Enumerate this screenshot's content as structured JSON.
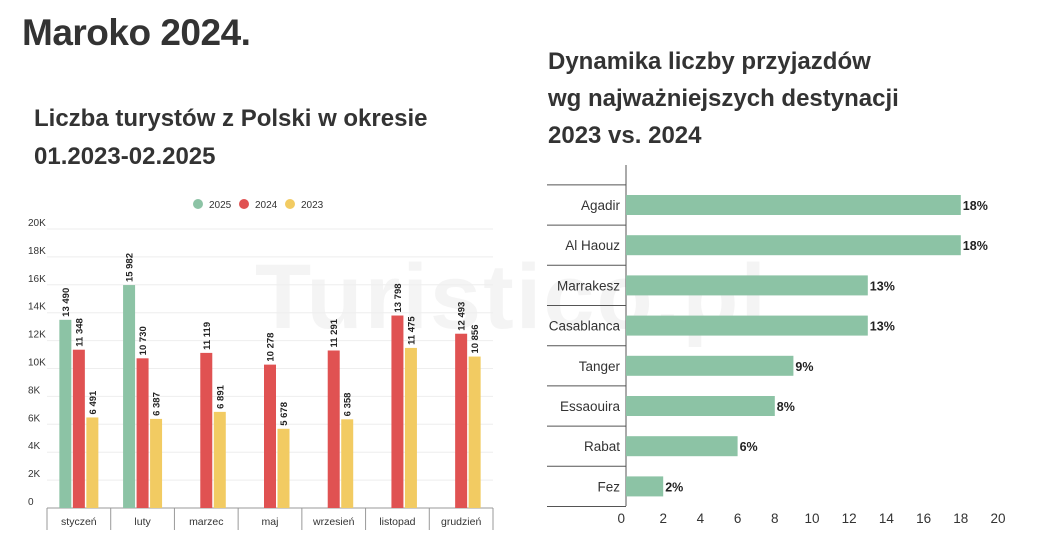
{
  "page": {
    "title": "Maroko 2024.",
    "watermark": "Turistico.pl"
  },
  "left_chart": {
    "title_lines": [
      "Liczba turystów z Polski w okresie",
      "01.2023-02.2025"
    ]
  },
  "right_chart": {
    "title_lines": [
      "Dynamika liczby przyjazdów",
      "wg najważniejszych destynacji",
      "2023 vs. 2024"
    ]
  },
  "colors": {
    "2025": "#8cc3a5",
    "2024": "#e05252",
    "2023": "#f2cb62",
    "hbar": "#8cc3a5"
  },
  "chart_data": [
    {
      "type": "bar",
      "title": "Liczba turystów z Polski w okresie 01.2023-02.2025",
      "categories": [
        "styczeń",
        "luty",
        "marzec",
        "maj",
        "wrzesień",
        "listopad",
        "grudzień"
      ],
      "series": [
        {
          "name": "2025",
          "values": [
            13490,
            15982,
            null,
            null,
            null,
            null,
            null
          ],
          "labels": [
            "13 490",
            "15 982",
            "",
            "",
            "",
            "",
            ""
          ]
        },
        {
          "name": "2024",
          "values": [
            11348,
            10730,
            11119,
            10278,
            11291,
            13798,
            12493
          ],
          "labels": [
            "11 348",
            "10 730",
            "11 119",
            "10 278",
            "11 291",
            "13 798",
            "12 493"
          ]
        },
        {
          "name": "2023",
          "values": [
            6491,
            6387,
            6891,
            5678,
            6358,
            11475,
            10856
          ],
          "labels": [
            "6 491",
            "6 387",
            "6 891",
            "5 678",
            "6 358",
            "11 475",
            "10 856"
          ]
        }
      ],
      "ylim": [
        0,
        20000
      ],
      "yticks": [
        0,
        2000,
        4000,
        6000,
        8000,
        10000,
        12000,
        14000,
        16000,
        18000,
        20000
      ],
      "ytick_labels": [
        "0",
        "2K",
        "4K",
        "6K",
        "8K",
        "10K",
        "12K",
        "14K",
        "16K",
        "18K",
        "20K"
      ],
      "legend": "top-center",
      "grid": true
    },
    {
      "type": "bar",
      "orientation": "horizontal",
      "title": "Dynamika liczby przyjazdów wg najważniejszych destynacji 2023 vs. 2024",
      "categories": [
        "Agadir",
        "Al Haouz",
        "Marrakesz",
        "Casablanca",
        "Tanger",
        "Essaouira",
        "Rabat",
        "Fez"
      ],
      "values": [
        18,
        18,
        13,
        13,
        9,
        8,
        6,
        2
      ],
      "value_labels": [
        "18%",
        "18%",
        "13%",
        "13%",
        "9%",
        "8%",
        "6%",
        "2%"
      ],
      "xlim": [
        0,
        20
      ],
      "xticks": [
        0,
        2,
        4,
        6,
        8,
        10,
        12,
        14,
        16,
        18,
        20
      ],
      "xtick_labels": [
        "0",
        "2",
        "4",
        "6",
        "8",
        "10",
        "12",
        "14",
        "16",
        "18",
        "20"
      ],
      "grid": false
    }
  ]
}
